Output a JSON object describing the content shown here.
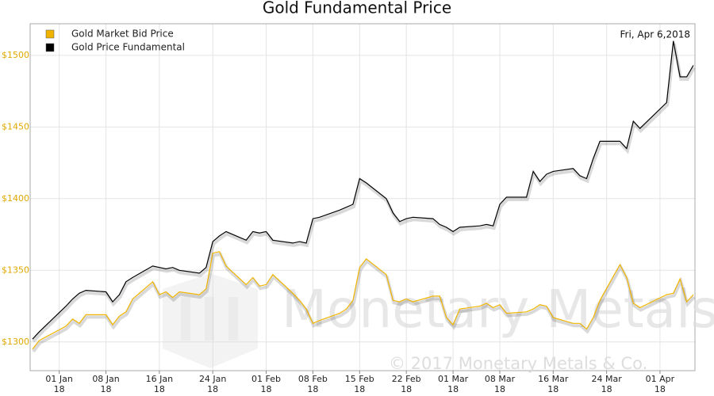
{
  "chart_data": {
    "type": "line",
    "title": "Gold Fundamental Price",
    "annotation": "Fri, Apr 6,2018",
    "watermark": "Monetary Metals",
    "copyright": "© 2017 Monetary Metals & Co.",
    "x": [
      "2017-12-28",
      "2017-12-29",
      "2018-01-02",
      "2018-01-03",
      "2018-01-04",
      "2018-01-05",
      "2018-01-08",
      "2018-01-09",
      "2018-01-10",
      "2018-01-11",
      "2018-01-12",
      "2018-01-15",
      "2018-01-16",
      "2018-01-17",
      "2018-01-18",
      "2018-01-19",
      "2018-01-22",
      "2018-01-23",
      "2018-01-24",
      "2018-01-25",
      "2018-01-26",
      "2018-01-29",
      "2018-01-30",
      "2018-01-31",
      "2018-02-01",
      "2018-02-02",
      "2018-02-05",
      "2018-02-06",
      "2018-02-07",
      "2018-02-08",
      "2018-02-09",
      "2018-02-12",
      "2018-02-13",
      "2018-02-14",
      "2018-02-15",
      "2018-02-16",
      "2018-02-19",
      "2018-02-20",
      "2018-02-21",
      "2018-02-22",
      "2018-02-23",
      "2018-02-26",
      "2018-02-27",
      "2018-02-28",
      "2018-03-01",
      "2018-03-02",
      "2018-03-05",
      "2018-03-06",
      "2018-03-07",
      "2018-03-08",
      "2018-03-09",
      "2018-03-12",
      "2018-03-13",
      "2018-03-14",
      "2018-03-15",
      "2018-03-16",
      "2018-03-19",
      "2018-03-20",
      "2018-03-21",
      "2018-03-22",
      "2018-03-23",
      "2018-03-26",
      "2018-03-27",
      "2018-03-28",
      "2018-03-29",
      "2018-04-02",
      "2018-04-03",
      "2018-04-04",
      "2018-04-05",
      "2018-04-06"
    ],
    "series": [
      {
        "name": "Gold Market Bid Price",
        "color": "#f0b400",
        "values": [
          1295,
          1301,
          1311,
          1316,
          1313,
          1319,
          1319,
          1312,
          1318,
          1321,
          1330,
          1342,
          1333,
          1335,
          1331,
          1335,
          1333,
          1337,
          1362,
          1363,
          1353,
          1340,
          1345,
          1339,
          1340,
          1347,
          1334,
          1329,
          1323,
          1313,
          1315,
          1320,
          1323,
          1329,
          1352,
          1358,
          1347,
          1329,
          1328,
          1330,
          1328,
          1332,
          1332,
          1317,
          1312,
          1323,
          1325,
          1327,
          1324,
          1326,
          1320,
          1321,
          1323,
          1326,
          1325,
          1317,
          1313,
          1313,
          1309,
          1317,
          1329,
          1354,
          1345,
          1327,
          1324,
          1333,
          1334,
          1344,
          1328,
          1333
        ]
      },
      {
        "name": "Gold Price Fundamental",
        "color": "#000000",
        "values": [
          1302,
          1307,
          1325,
          1330,
          1334,
          1336,
          1335,
          1328,
          1333,
          1342,
          1345,
          1353,
          1352,
          1351,
          1352,
          1350,
          1348,
          1352,
          1370,
          1374,
          1377,
          1371,
          1377,
          1376,
          1377,
          1371,
          1369,
          1370,
          1369,
          1386,
          1387,
          1392,
          1394,
          1396,
          1414,
          1411,
          1400,
          1390,
          1384,
          1386,
          1387,
          1386,
          1382,
          1380,
          1377,
          1380,
          1381,
          1382,
          1381,
          1396,
          1401,
          1401,
          1419,
          1412,
          1417,
          1419,
          1421,
          1416,
          1414,
          1428,
          1440,
          1440,
          1435,
          1454,
          1449,
          1467,
          1510,
          1485,
          1485,
          1493
        ]
      }
    ],
    "xlim": [
      "2017-12-28",
      "2018-04-06"
    ],
    "xticks": [
      {
        "value": "2018-01-01",
        "label": "01 Jan\n18"
      },
      {
        "value": "2018-01-08",
        "label": "08 Jan\n18"
      },
      {
        "value": "2018-01-16",
        "label": "16 Jan\n18"
      },
      {
        "value": "2018-01-24",
        "label": "24 Jan\n18"
      },
      {
        "value": "2018-02-01",
        "label": "01 Feb\n18"
      },
      {
        "value": "2018-02-08",
        "label": "08 Feb\n18"
      },
      {
        "value": "2018-02-15",
        "label": "15 Feb\n18"
      },
      {
        "value": "2018-02-22",
        "label": "22 Feb\n18"
      },
      {
        "value": "2018-03-01",
        "label": "01 Mar\n18"
      },
      {
        "value": "2018-03-08",
        "label": "08 Mar\n18"
      },
      {
        "value": "2018-03-16",
        "label": "16 Mar\n18"
      },
      {
        "value": "2018-03-24",
        "label": "24 Mar\n18"
      },
      {
        "value": "2018-04-01",
        "label": "01 Apr\n18"
      }
    ],
    "ylim": [
      1280,
      1522
    ],
    "yticks": [
      {
        "value": 1300,
        "label": "$1300"
      },
      {
        "value": 1350,
        "label": "$1350"
      },
      {
        "value": 1400,
        "label": "$1400"
      },
      {
        "value": 1450,
        "label": "$1450"
      },
      {
        "value": 1500,
        "label": "$1500"
      }
    ],
    "ytick_color": "#e0a800",
    "grid": true,
    "legend": "upper left"
  }
}
